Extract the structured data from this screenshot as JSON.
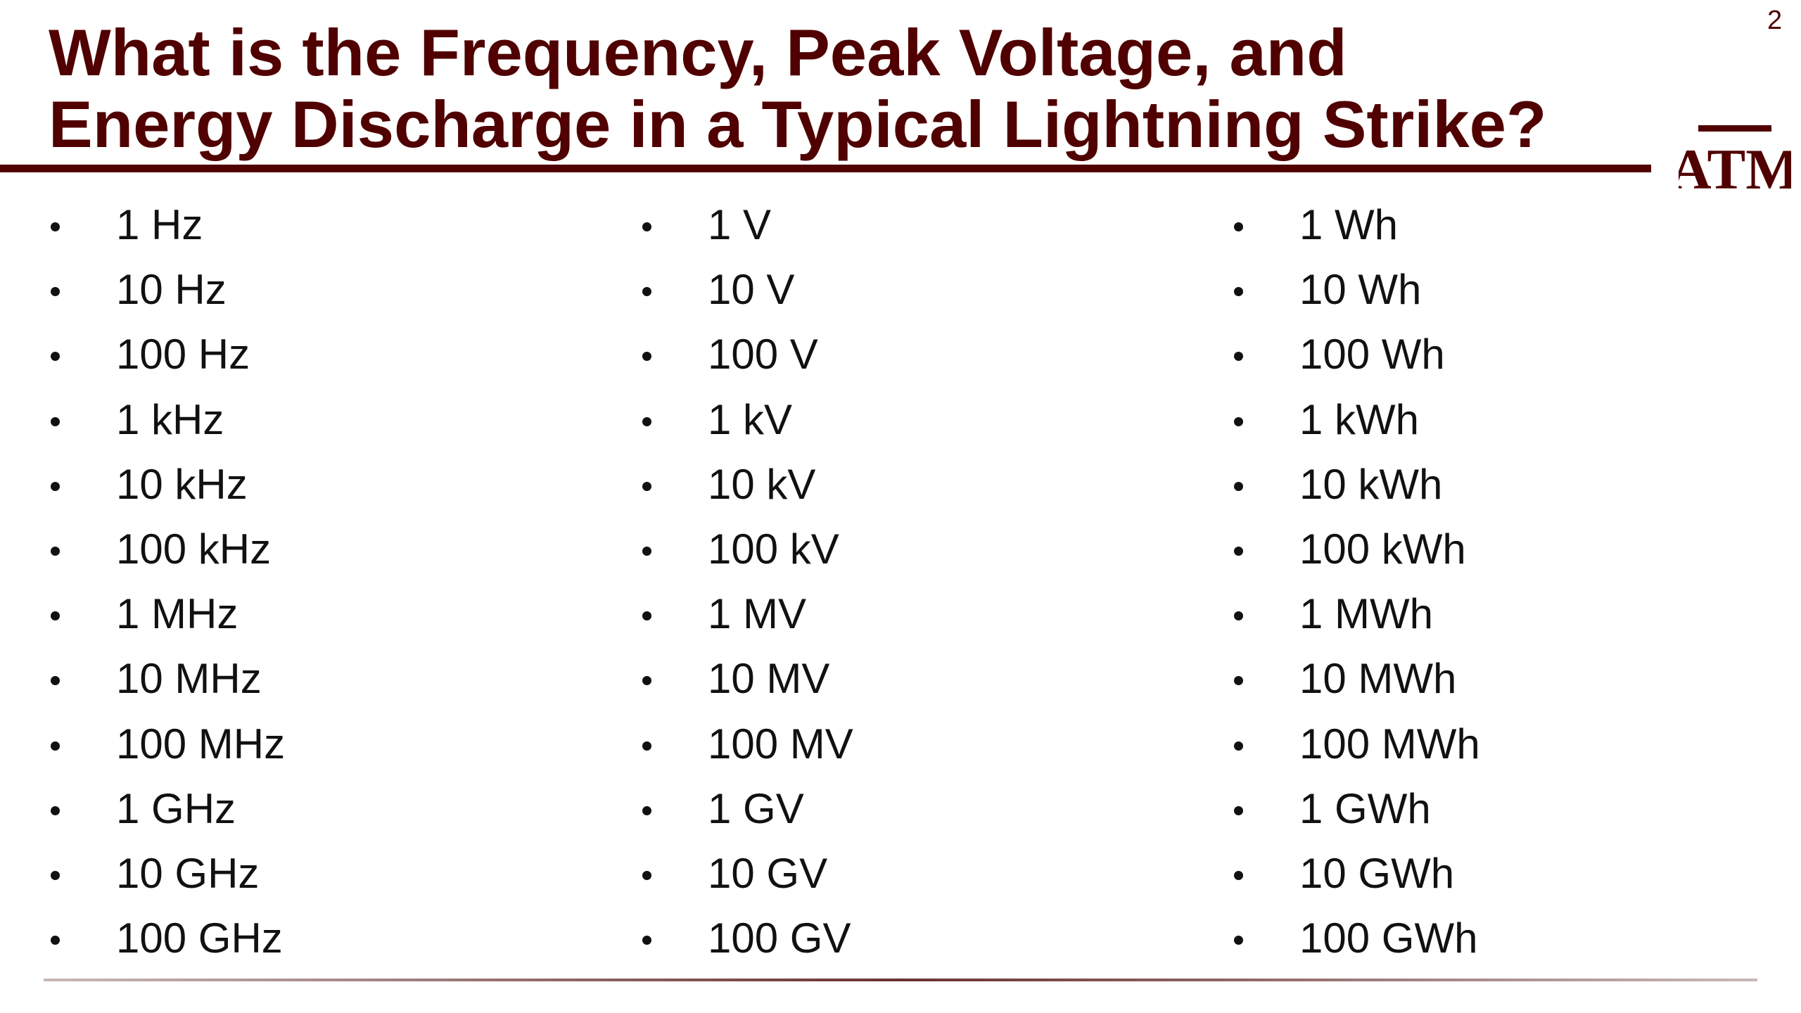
{
  "header": {
    "title_lines": [
      "What is the Frequency, Peak Voltage, and",
      "Energy Discharge in a Typical Lightning Strike?"
    ],
    "page_number": 2,
    "logo": "ATM"
  },
  "columns": [
    {
      "items": [
        "1 Hz",
        "10 Hz",
        "100 Hz",
        "1 kHz",
        "10 kHz",
        "100 kHz",
        "1 MHz",
        "10 MHz",
        "100 MHz",
        "1 GHz",
        "10 GHz",
        "100 GHz"
      ]
    },
    {
      "items": [
        "1 V",
        "10 V",
        "100 V",
        "1 kV",
        "10 kV",
        "100 kV",
        "1 MV",
        "10 MV",
        "100 MV",
        "1 GV",
        "10 GV",
        "100 GV"
      ]
    },
    {
      "items": [
        "1 Wh",
        "10 Wh",
        "100 Wh",
        "1 kWh",
        "10 kWh",
        "100 kWh",
        "1 MWh",
        "10 MWh",
        "100 MWh",
        "1 GWh",
        "10 GWh",
        "100 GWh"
      ]
    }
  ]
}
